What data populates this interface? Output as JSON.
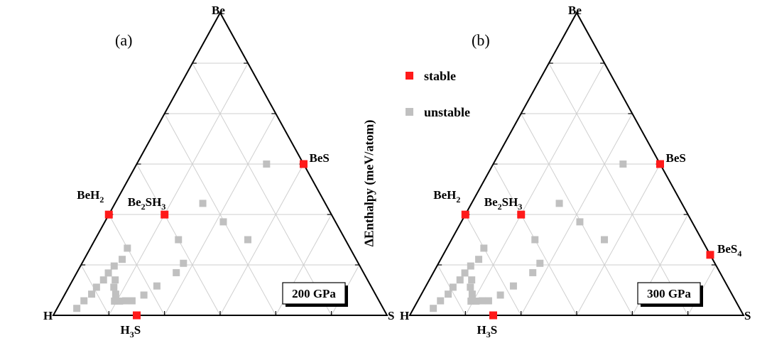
{
  "ylabel": "ΔEnthalpy (meV/atom)",
  "legend": [
    {
      "label": "stable",
      "color": "#ff1a1a"
    },
    {
      "label": "unstable",
      "color": "#c0c0c0"
    }
  ],
  "chart_data": [
    {
      "type": "scatter",
      "subtype": "ternary",
      "panel": "(a)",
      "pressure": "200 GPa",
      "vertices": {
        "top": "Be",
        "left": "H",
        "right": "S"
      },
      "coordinates": "fraction of S (s) and fraction of Be (b); H = 1 - s - b",
      "grid": true,
      "stable": [
        {
          "label": "BeH2",
          "s": 0.0,
          "b": 0.333
        },
        {
          "label": "Be2SH3",
          "s": 0.167,
          "b": 0.333
        },
        {
          "label": "BeS",
          "s": 0.5,
          "b": 0.5
        },
        {
          "label": "H3S",
          "s": 0.25,
          "b": 0.0
        }
      ],
      "unstable": [
        {
          "s": 0.389,
          "b": 0.5
        },
        {
          "s": 0.263,
          "b": 0.37
        },
        {
          "s": 0.355,
          "b": 0.309
        },
        {
          "s": 0.25,
          "b": 0.25
        },
        {
          "s": 0.458,
          "b": 0.25
        },
        {
          "s": 0.111,
          "b": 0.222
        },
        {
          "s": 0.114,
          "b": 0.185
        },
        {
          "s": 0.101,
          "b": 0.163
        },
        {
          "s": 0.095,
          "b": 0.14
        },
        {
          "s": 0.092,
          "b": 0.117
        },
        {
          "s": 0.083,
          "b": 0.093
        },
        {
          "s": 0.08,
          "b": 0.07
        },
        {
          "s": 0.068,
          "b": 0.048
        },
        {
          "s": 0.059,
          "b": 0.023
        },
        {
          "s": 0.127,
          "b": 0.117
        },
        {
          "s": 0.135,
          "b": 0.093
        },
        {
          "s": 0.152,
          "b": 0.07
        },
        {
          "s": 0.16,
          "b": 0.047
        },
        {
          "s": 0.175,
          "b": 0.047
        },
        {
          "s": 0.193,
          "b": 0.048
        },
        {
          "s": 0.212,
          "b": 0.048
        },
        {
          "s": 0.238,
          "b": 0.067
        },
        {
          "s": 0.262,
          "b": 0.097
        },
        {
          "s": 0.298,
          "b": 0.141
        },
        {
          "s": 0.304,
          "b": 0.172
        }
      ]
    },
    {
      "type": "scatter",
      "subtype": "ternary",
      "panel": "(b)",
      "pressure": "300 GPa",
      "vertices": {
        "top": "Be",
        "left": "H",
        "right": "S"
      },
      "coordinates": "fraction of S (s) and fraction of Be (b); H = 1 - s - b",
      "grid": true,
      "stable": [
        {
          "label": "BeH2",
          "s": 0.0,
          "b": 0.333
        },
        {
          "label": "Be2SH3",
          "s": 0.167,
          "b": 0.333
        },
        {
          "label": "BeS",
          "s": 0.5,
          "b": 0.5
        },
        {
          "label": "BeS4",
          "s": 0.8,
          "b": 0.2
        },
        {
          "label": "H3S",
          "s": 0.25,
          "b": 0.0
        }
      ],
      "unstable": [
        {
          "s": 0.389,
          "b": 0.5
        },
        {
          "s": 0.263,
          "b": 0.37
        },
        {
          "s": 0.355,
          "b": 0.309
        },
        {
          "s": 0.25,
          "b": 0.25
        },
        {
          "s": 0.458,
          "b": 0.25
        },
        {
          "s": 0.111,
          "b": 0.222
        },
        {
          "s": 0.114,
          "b": 0.185
        },
        {
          "s": 0.101,
          "b": 0.163
        },
        {
          "s": 0.095,
          "b": 0.14
        },
        {
          "s": 0.092,
          "b": 0.117
        },
        {
          "s": 0.083,
          "b": 0.093
        },
        {
          "s": 0.08,
          "b": 0.07
        },
        {
          "s": 0.068,
          "b": 0.048
        },
        {
          "s": 0.059,
          "b": 0.023
        },
        {
          "s": 0.127,
          "b": 0.117
        },
        {
          "s": 0.135,
          "b": 0.093
        },
        {
          "s": 0.152,
          "b": 0.07
        },
        {
          "s": 0.16,
          "b": 0.047
        },
        {
          "s": 0.175,
          "b": 0.047
        },
        {
          "s": 0.193,
          "b": 0.048
        },
        {
          "s": 0.212,
          "b": 0.048
        },
        {
          "s": 0.238,
          "b": 0.067
        },
        {
          "s": 0.262,
          "b": 0.097
        },
        {
          "s": 0.298,
          "b": 0.141
        },
        {
          "s": 0.304,
          "b": 0.172
        }
      ]
    }
  ]
}
